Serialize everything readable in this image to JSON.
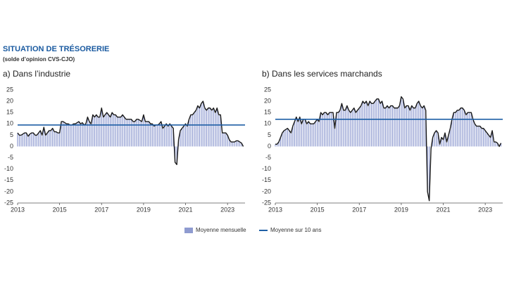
{
  "header": {
    "title": "SITUATION DE TRÉSORERIE",
    "subtitle": "(solde d’opinion CVS-CJO)"
  },
  "chart_data": [
    {
      "type": "bar",
      "title": "a)  Dans l’industrie",
      "categories": [
        "2013",
        null,
        null,
        null,
        null,
        null,
        null,
        null,
        null,
        null,
        null,
        null,
        null,
        null,
        null,
        null,
        null,
        null,
        null,
        null,
        null,
        null,
        null,
        null,
        "2015",
        null,
        null,
        null,
        null,
        null,
        null,
        null,
        null,
        null,
        null,
        null,
        null,
        null,
        null,
        null,
        null,
        null,
        null,
        null,
        null,
        null,
        null,
        null,
        "2017",
        null,
        null,
        null,
        null,
        null,
        null,
        null,
        null,
        null,
        null,
        null,
        null,
        null,
        null,
        null,
        null,
        null,
        null,
        null,
        null,
        null,
        null,
        null,
        "2019",
        null,
        null,
        null,
        null,
        null,
        null,
        null,
        null,
        null,
        null,
        null,
        null,
        null,
        null,
        null,
        null,
        null,
        null,
        null,
        null,
        null,
        null,
        null,
        "2021",
        null,
        null,
        null,
        null,
        null,
        null,
        null,
        null,
        null,
        null,
        null,
        null,
        null,
        null,
        null,
        null,
        null,
        null,
        null,
        null,
        null,
        null,
        null,
        "2023",
        null,
        null,
        null,
        null,
        null,
        null,
        null,
        null,
        null
      ],
      "series": [
        {
          "name": "Moyenne mensuelle",
          "color": "#8f9bd0",
          "line_color": "#1a1a1a",
          "values": [
            6,
            5,
            5,
            5.5,
            6,
            6,
            4.5,
            5.5,
            6,
            6,
            5,
            5,
            6,
            7,
            5,
            8.5,
            5,
            6,
            7,
            7,
            8,
            6.5,
            6.5,
            6,
            6,
            11,
            11,
            10.5,
            10,
            10,
            9.5,
            9.5,
            10,
            10,
            10.5,
            11,
            10,
            10.5,
            9.5,
            10,
            13,
            11,
            10,
            14,
            13,
            14,
            13,
            13,
            17,
            13,
            14,
            15,
            14,
            13,
            15,
            14,
            14,
            13,
            13,
            13,
            14,
            13,
            12,
            12,
            12,
            12,
            11,
            11,
            12,
            12,
            11.5,
            11,
            14,
            11,
            11,
            11,
            10,
            10,
            9,
            9.5,
            9.5,
            10,
            11,
            8,
            9,
            10,
            9,
            10,
            9,
            8,
            -7,
            -8,
            3,
            7,
            8,
            9,
            10,
            9,
            12,
            14,
            14,
            15,
            16,
            18,
            17,
            19,
            20,
            17,
            16,
            17,
            17,
            16,
            17,
            15,
            17,
            14,
            14,
            6,
            6,
            6,
            5,
            3,
            2,
            2,
            2,
            2.5,
            2.5,
            2,
            1.5,
            0
          ]
        }
      ],
      "hline": {
        "name": "Moyenne sur 10 ans",
        "value": 9.5,
        "color": "#1f5fa6"
      },
      "ylim": [
        -25,
        25
      ],
      "yticks": [
        -25,
        -20,
        -15,
        -10,
        -5,
        0,
        5,
        10,
        15,
        20,
        25
      ]
    },
    {
      "type": "bar",
      "title": "b)  Dans les services marchands",
      "categories": [
        "2013",
        null,
        null,
        null,
        null,
        null,
        null,
        null,
        null,
        null,
        null,
        null,
        null,
        null,
        null,
        null,
        null,
        null,
        null,
        null,
        null,
        null,
        null,
        null,
        "2015",
        null,
        null,
        null,
        null,
        null,
        null,
        null,
        null,
        null,
        null,
        null,
        null,
        null,
        null,
        null,
        null,
        null,
        null,
        null,
        null,
        null,
        null,
        null,
        "2017",
        null,
        null,
        null,
        null,
        null,
        null,
        null,
        null,
        null,
        null,
        null,
        null,
        null,
        null,
        null,
        null,
        null,
        null,
        null,
        null,
        null,
        null,
        null,
        "2019",
        null,
        null,
        null,
        null,
        null,
        null,
        null,
        null,
        null,
        null,
        null,
        null,
        null,
        null,
        null,
        null,
        null,
        null,
        null,
        null,
        null,
        null,
        null,
        "2021",
        null,
        null,
        null,
        null,
        null,
        null,
        null,
        null,
        null,
        null,
        null,
        null,
        null,
        null,
        null,
        null,
        null,
        null,
        null,
        null,
        null,
        null,
        null,
        "2023",
        null,
        null,
        null,
        null,
        null,
        null,
        null,
        null,
        null
      ],
      "series": [
        {
          "color": "#8f9bd0",
          "line_color": "#1a1a1a",
          "values": [
            1,
            1,
            2,
            4,
            6,
            7,
            7.5,
            8,
            7,
            6,
            9,
            11,
            13,
            11,
            13,
            10,
            12,
            12,
            10,
            11,
            10,
            10,
            10,
            11,
            12,
            11,
            15,
            14,
            15,
            15,
            14,
            15,
            15,
            15,
            8,
            15,
            15,
            16,
            19,
            16,
            16,
            18,
            16,
            15,
            16,
            17,
            15,
            16,
            17,
            18,
            20,
            19,
            20,
            18,
            20,
            19,
            19,
            20,
            21,
            21,
            19,
            20,
            17,
            17,
            18,
            17,
            18,
            18,
            17,
            17,
            17,
            18,
            22,
            21,
            17,
            18,
            18,
            16,
            18,
            17,
            17,
            19,
            20,
            18,
            17,
            18,
            16,
            -20,
            -24,
            -1,
            4,
            6,
            7,
            6,
            1,
            4,
            3,
            6,
            2,
            5,
            8,
            12,
            15,
            15,
            16,
            16,
            17,
            17,
            16,
            14,
            15,
            15,
            15,
            12,
            10,
            9,
            9,
            9,
            8,
            8,
            7,
            6,
            5,
            4,
            7,
            2,
            2,
            1.5,
            0,
            1.5
          ]
        }
      ],
      "hline": {
        "value": 12,
        "color": "#1f5fa6"
      },
      "ylim": [
        -25,
        25
      ],
      "yticks": [
        -25,
        -20,
        -15,
        -10,
        -5,
        0,
        5,
        10,
        15,
        20,
        25
      ]
    }
  ]
}
